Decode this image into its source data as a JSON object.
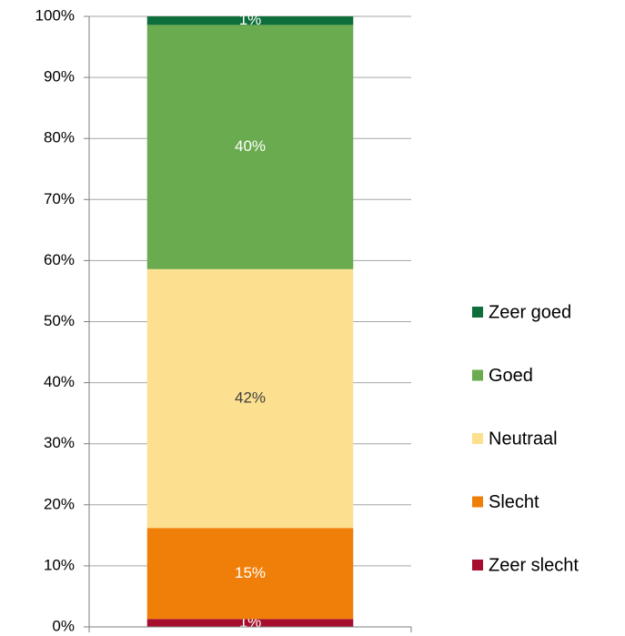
{
  "chart_data": {
    "type": "stacked_bar_100",
    "categories": [
      null
    ],
    "series": [
      {
        "name": "Zeer slecht",
        "color": "#a50f2d",
        "values": [
          1.3
        ],
        "value_labels": [
          "1%"
        ]
      },
      {
        "name": "Slecht",
        "color": "#f07f09",
        "values": [
          14.9
        ],
        "value_labels": [
          "15%"
        ]
      },
      {
        "name": "Neutraal",
        "color": "#fde08f",
        "values": [
          42.4
        ],
        "value_labels": [
          "42%"
        ]
      },
      {
        "name": "Goed",
        "color": "#6aab4f",
        "values": [
          40.0
        ],
        "value_labels": [
          "40%"
        ]
      },
      {
        "name": "Zeer goed",
        "color": "#0e6e3b",
        "values": [
          1.4
        ],
        "value_labels": [
          "1%"
        ]
      }
    ],
    "ylim": [
      0,
      100
    ],
    "yticks": [
      {
        "value": 0,
        "label": "0%"
      },
      {
        "value": 10,
        "label": "10%"
      },
      {
        "value": 20,
        "label": "20%"
      },
      {
        "value": 30,
        "label": "30%"
      },
      {
        "value": 40,
        "label": "40%"
      },
      {
        "value": 50,
        "label": "50%"
      },
      {
        "value": 60,
        "label": "60%"
      },
      {
        "value": 70,
        "label": "70%"
      },
      {
        "value": 80,
        "label": "80%"
      },
      {
        "value": 90,
        "label": "90%"
      },
      {
        "value": 100,
        "label": "100%"
      }
    ],
    "grid": true,
    "legend": "right"
  }
}
